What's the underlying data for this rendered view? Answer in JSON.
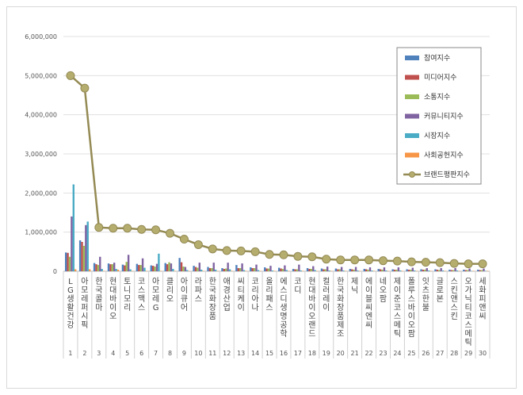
{
  "chart_data": {
    "type": "bar",
    "title": "",
    "ylim": [
      0,
      6000000
    ],
    "yticks": [
      "0",
      "1,000,000",
      "2,000,000",
      "3,000,000",
      "4,000,000",
      "5,000,000",
      "6,000,000"
    ],
    "categories": [
      "LG생활건강",
      "아모레퍼시픽",
      "한국콜마",
      "현대바이오",
      "토니모리",
      "코스맥스",
      "아모레G",
      "클리오",
      "아이큐어",
      "라파스",
      "한국화장품",
      "애경산업",
      "씨티케이",
      "코리아나",
      "올리패스",
      "에스디생명공학",
      "코디",
      "현대바이오랜드",
      "컬러레이",
      "한국화장품제조",
      "제닉",
      "에이블씨엔씨",
      "네오팜",
      "제이준코스메틱",
      "폴루스바이오팜",
      "잇츠한불",
      "글로본",
      "스킨앤스킨",
      "오가닉티코스메틱",
      "세화피앤씨"
    ],
    "ranks": [
      "1",
      "2",
      "3",
      "4",
      "5",
      "6",
      "7",
      "8",
      "9",
      "10",
      "11",
      "12",
      "13",
      "14",
      "15",
      "16",
      "17",
      "18",
      "19",
      "20",
      "21",
      "22",
      "23",
      "24",
      "25",
      "26",
      "27",
      "28",
      "29",
      "30"
    ],
    "series": [
      {
        "name": "참여지수",
        "color": "#4f81bd",
        "values": [
          480000,
          790000,
          210000,
          200000,
          170000,
          190000,
          150000,
          210000,
          340000,
          140000,
          110000,
          80000,
          160000,
          100000,
          100000,
          90000,
          60000,
          80000,
          70000,
          70000,
          60000,
          60000,
          60000,
          50000,
          50000,
          50000,
          50000,
          40000,
          40000,
          40000
        ]
      },
      {
        "name": "미디어지수",
        "color": "#c0504d",
        "values": [
          470000,
          750000,
          180000,
          180000,
          150000,
          160000,
          140000,
          180000,
          230000,
          110000,
          80000,
          60000,
          80000,
          80000,
          70000,
          70000,
          50000,
          60000,
          50000,
          50000,
          50000,
          50000,
          50000,
          40000,
          40000,
          40000,
          40000,
          30000,
          30000,
          30000
        ]
      },
      {
        "name": "소통지수",
        "color": "#9bbb59",
        "values": [
          370000,
          650000,
          160000,
          180000,
          240000,
          160000,
          120000,
          230000,
          120000,
          90000,
          80000,
          70000,
          80000,
          80000,
          70000,
          60000,
          50000,
          60000,
          50000,
          50000,
          40000,
          40000,
          40000,
          40000,
          40000,
          40000,
          30000,
          30000,
          30000,
          30000
        ]
      },
      {
        "name": "커뮤니티지수",
        "color": "#8064a2",
        "values": [
          1400000,
          1180000,
          370000,
          220000,
          420000,
          330000,
          190000,
          200000,
          110000,
          220000,
          220000,
          220000,
          200000,
          170000,
          140000,
          150000,
          170000,
          130000,
          120000,
          110000,
          110000,
          100000,
          100000,
          100000,
          90000,
          80000,
          80000,
          80000,
          70000,
          70000
        ]
      },
      {
        "name": "시장지수",
        "color": "#4bacc6",
        "values": [
          2220000,
          1270000,
          60000,
          60000,
          50000,
          90000,
          450000,
          60000,
          30000,
          40000,
          40000,
          50000,
          30000,
          30000,
          20000,
          30000,
          20000,
          30000,
          20000,
          20000,
          20000,
          20000,
          20000,
          20000,
          20000,
          20000,
          20000,
          20000,
          10000,
          10000
        ]
      },
      {
        "name": "사회공헌지수",
        "color": "#f79646",
        "values": [
          50000,
          50000,
          10000,
          40000,
          10000,
          10000,
          10000,
          10000,
          10000,
          10000,
          10000,
          10000,
          10000,
          10000,
          10000,
          10000,
          10000,
          10000,
          10000,
          10000,
          10000,
          10000,
          10000,
          10000,
          10000,
          10000,
          10000,
          10000,
          10000,
          10000
        ]
      }
    ],
    "line": {
      "name": "브랜드평판지수",
      "color": "#948a54",
      "values": [
        5000000,
        4680000,
        1120000,
        1100000,
        1100000,
        1070000,
        1060000,
        970000,
        820000,
        680000,
        570000,
        530000,
        520000,
        500000,
        430000,
        420000,
        380000,
        370000,
        310000,
        290000,
        290000,
        290000,
        270000,
        260000,
        240000,
        230000,
        220000,
        200000,
        190000,
        190000
      ]
    },
    "legend_position": "top-right",
    "grid": true
  }
}
